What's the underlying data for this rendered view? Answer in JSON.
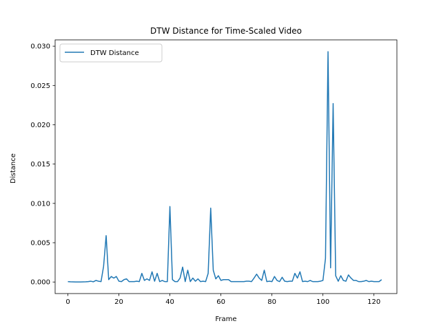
{
  "chart_data": {
    "type": "line",
    "title": "DTW Distance for Time-Scaled Video",
    "xlabel": "Frame",
    "ylabel": "Distance",
    "xlim": [
      -5,
      129
    ],
    "ylim": [
      -0.00147,
      0.0308
    ],
    "xticks": [
      0,
      20,
      40,
      60,
      80,
      100,
      120
    ],
    "yticks": [
      0.0,
      0.005,
      0.01,
      0.015,
      0.02,
      0.025,
      0.03
    ],
    "ytick_labels": [
      "0.000",
      "0.005",
      "0.010",
      "0.015",
      "0.020",
      "0.025",
      "0.030"
    ],
    "grid": false,
    "legend_position": "top-left",
    "color": "#1f77b4",
    "series": [
      {
        "name": "DTW Distance",
        "x": [
          0,
          1,
          2,
          3,
          4,
          5,
          6,
          7,
          8,
          9,
          10,
          11,
          12,
          13,
          14,
          15,
          16,
          17,
          18,
          19,
          20,
          21,
          22,
          23,
          24,
          25,
          26,
          27,
          28,
          29,
          30,
          31,
          32,
          33,
          34,
          35,
          36,
          37,
          38,
          39,
          40,
          41,
          42,
          43,
          44,
          45,
          46,
          47,
          48,
          49,
          50,
          51,
          52,
          53,
          54,
          55,
          56,
          57,
          58,
          59,
          60,
          61,
          62,
          63,
          64,
          65,
          66,
          67,
          68,
          69,
          70,
          71,
          72,
          73,
          74,
          75,
          76,
          77,
          78,
          79,
          80,
          81,
          82,
          83,
          84,
          85,
          86,
          87,
          88,
          89,
          90,
          91,
          92,
          93,
          94,
          95,
          96,
          97,
          98,
          99,
          100,
          101,
          102,
          103,
          104,
          105,
          106,
          107,
          108,
          109,
          110,
          111,
          112,
          113,
          114,
          115,
          116,
          117,
          118,
          119,
          120,
          121,
          122,
          123
        ],
        "values": [
          5e-05,
          3e-05,
          2e-05,
          1e-05,
          1e-05,
          1e-05,
          2e-05,
          3e-05,
          5e-05,
          0.0001,
          3e-05,
          0.0002,
          0.0001,
          5e-05,
          0.002,
          0.0059,
          0.0003,
          0.0007,
          0.0005,
          0.0007,
          0.0001,
          5e-05,
          0.0003,
          0.0004,
          5e-05,
          5e-05,
          5e-05,
          0.0001,
          5e-05,
          0.0011,
          0.0002,
          0.0004,
          0.0002,
          0.0013,
          0.0001,
          0.0011,
          5e-05,
          0.0002,
          5e-05,
          5e-05,
          0.0096,
          0.0003,
          5e-05,
          5e-05,
          0.0005,
          0.0019,
          5e-05,
          0.0015,
          5e-05,
          0.0005,
          0.0001,
          0.0004,
          5e-05,
          0.0001,
          5e-05,
          0.0011,
          0.0094,
          0.0015,
          0.0004,
          0.0008,
          0.0002,
          0.0003,
          0.0003,
          0.0003,
          5e-05,
          5e-05,
          5e-05,
          5e-05,
          5e-05,
          5e-05,
          0.0001,
          0.0001,
          5e-05,
          0.0005,
          0.001,
          0.0005,
          0.0002,
          0.0015,
          5e-05,
          0.0001,
          5e-05,
          0.0007,
          0.0002,
          5e-05,
          0.0006,
          0.0001,
          5e-05,
          0.0001,
          0.0001,
          0.0011,
          0.0005,
          0.0013,
          5e-05,
          0.0001,
          5e-05,
          0.0002,
          5e-05,
          5e-05,
          5e-05,
          0.0001,
          0.0002,
          0.003,
          0.0293,
          0.0018,
          0.0227,
          0.0008,
          0.0001,
          0.0008,
          0.0002,
          0.0001,
          0.0009,
          0.0005,
          0.0002,
          0.0002,
          5e-05,
          5e-05,
          0.0001,
          0.0002,
          5e-05,
          0.0001,
          5e-05,
          5e-05,
          5e-05,
          0.0003
        ]
      }
    ]
  }
}
